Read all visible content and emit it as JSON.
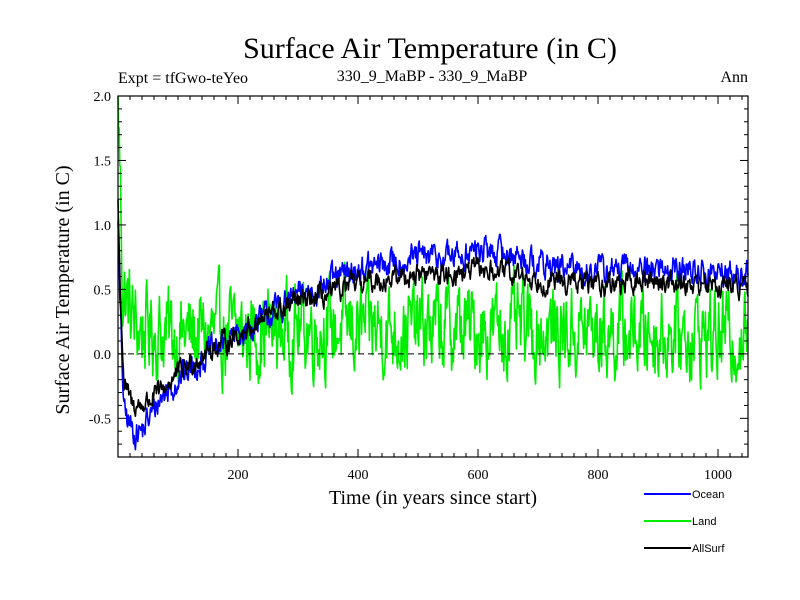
{
  "chart_data": {
    "type": "line",
    "title": "Surface Air Temperature (in C)",
    "subtitle_left": "Expt = tfGwo-teYeo",
    "subtitle_center": "330_9_MaBP - 330_9_MaBP",
    "subtitle_right": "Ann",
    "xlabel": "Time (in years since start)",
    "ylabel": "Surface Air Temperature (in C)",
    "xlim": [
      0,
      1050
    ],
    "ylim": [
      -0.8,
      2.0
    ],
    "xticks": [
      200,
      400,
      600,
      800,
      1000
    ],
    "yticks": [
      -0.5,
      0.0,
      0.5,
      1.0,
      1.5,
      2.0
    ],
    "ytick_labels": [
      "-0.5",
      "0.0",
      "0.5",
      "1.0",
      "1.5",
      "2.0"
    ],
    "zero_line": 0.0,
    "series": [
      {
        "name": "Ocean",
        "color": "#0000ff",
        "anchors": [
          [
            0,
            1.1
          ],
          [
            3,
            0.4
          ],
          [
            10,
            -0.45
          ],
          [
            25,
            -0.6
          ],
          [
            40,
            -0.6
          ],
          [
            70,
            -0.35
          ],
          [
            100,
            -0.2
          ],
          [
            150,
            0.0
          ],
          [
            200,
            0.15
          ],
          [
            250,
            0.3
          ],
          [
            300,
            0.45
          ],
          [
            350,
            0.55
          ],
          [
            400,
            0.65
          ],
          [
            450,
            0.7
          ],
          [
            500,
            0.75
          ],
          [
            550,
            0.75
          ],
          [
            600,
            0.8
          ],
          [
            650,
            0.78
          ],
          [
            700,
            0.7
          ],
          [
            750,
            0.65
          ],
          [
            800,
            0.65
          ],
          [
            850,
            0.65
          ],
          [
            900,
            0.67
          ],
          [
            950,
            0.65
          ],
          [
            1000,
            0.62
          ],
          [
            1050,
            0.6
          ]
        ],
        "noise": 0.09
      },
      {
        "name": "Land",
        "color": "#00ee00",
        "anchors": [
          [
            0,
            2.0
          ],
          [
            3,
            1.5
          ],
          [
            8,
            0.5
          ],
          [
            30,
            0.2
          ],
          [
            100,
            0.15
          ],
          [
            200,
            0.15
          ],
          [
            300,
            0.2
          ],
          [
            400,
            0.2
          ],
          [
            500,
            0.2
          ],
          [
            600,
            0.2
          ],
          [
            700,
            0.18
          ],
          [
            800,
            0.17
          ],
          [
            900,
            0.17
          ],
          [
            1000,
            0.15
          ],
          [
            1050,
            0.15
          ]
        ],
        "noise": 0.28
      },
      {
        "name": "AllSurf",
        "color": "#000000",
        "anchors": [
          [
            0,
            1.2
          ],
          [
            3,
            0.6
          ],
          [
            10,
            -0.25
          ],
          [
            25,
            -0.4
          ],
          [
            40,
            -0.4
          ],
          [
            70,
            -0.3
          ],
          [
            100,
            -0.15
          ],
          [
            150,
            0.02
          ],
          [
            200,
            0.15
          ],
          [
            250,
            0.3
          ],
          [
            300,
            0.4
          ],
          [
            350,
            0.45
          ],
          [
            400,
            0.55
          ],
          [
            450,
            0.58
          ],
          [
            500,
            0.62
          ],
          [
            550,
            0.62
          ],
          [
            600,
            0.65
          ],
          [
            650,
            0.63
          ],
          [
            700,
            0.57
          ],
          [
            750,
            0.55
          ],
          [
            800,
            0.55
          ],
          [
            850,
            0.55
          ],
          [
            900,
            0.57
          ],
          [
            950,
            0.55
          ],
          [
            1000,
            0.53
          ],
          [
            1050,
            0.52
          ]
        ],
        "noise": 0.07
      }
    ]
  }
}
